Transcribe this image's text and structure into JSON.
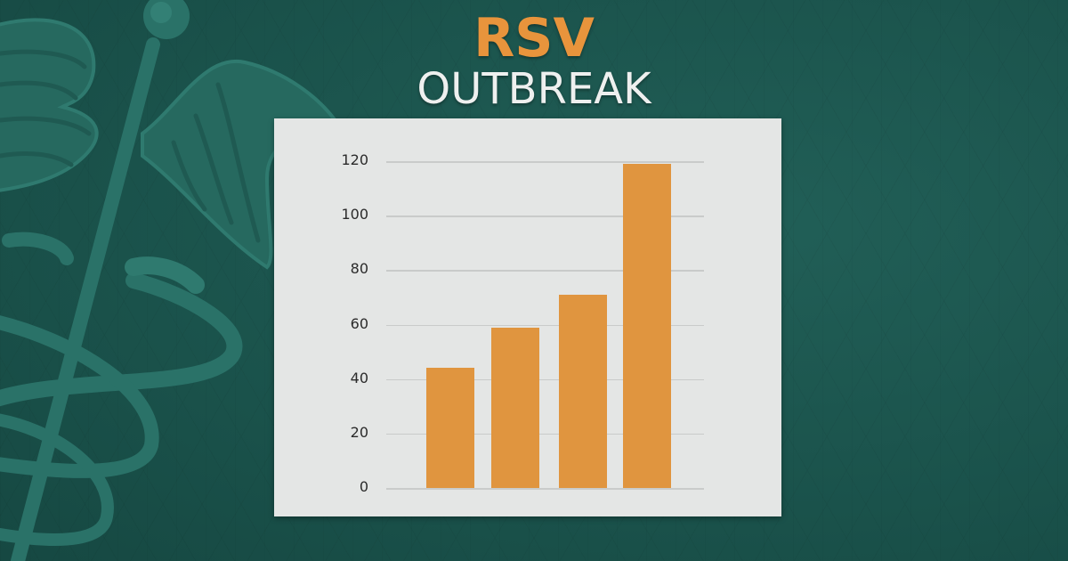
{
  "header": {
    "title_line1": "RSV",
    "title_line2": "OUTBREAK"
  },
  "colors": {
    "background": "#1c5750",
    "accent_orange": "#e0953f",
    "title_white": "#eef0ef",
    "panel": "#e4e6e5"
  },
  "background_icon": "caduceus-icon",
  "chart_data": {
    "type": "bar",
    "title": "RSV OUTBREAK",
    "categories": [
      "",
      "",
      "",
      ""
    ],
    "values": [
      44,
      59,
      71,
      119
    ],
    "xlabel": "",
    "ylabel": "",
    "ylim": [
      0,
      120
    ],
    "yticks": [
      0,
      20,
      40,
      60,
      80,
      100,
      120
    ],
    "grid": true,
    "legend": null,
    "bar_color": "#e0953f"
  },
  "axis": {
    "ticks": [
      "0",
      "20",
      "40",
      "60",
      "80",
      "100",
      "120"
    ]
  }
}
